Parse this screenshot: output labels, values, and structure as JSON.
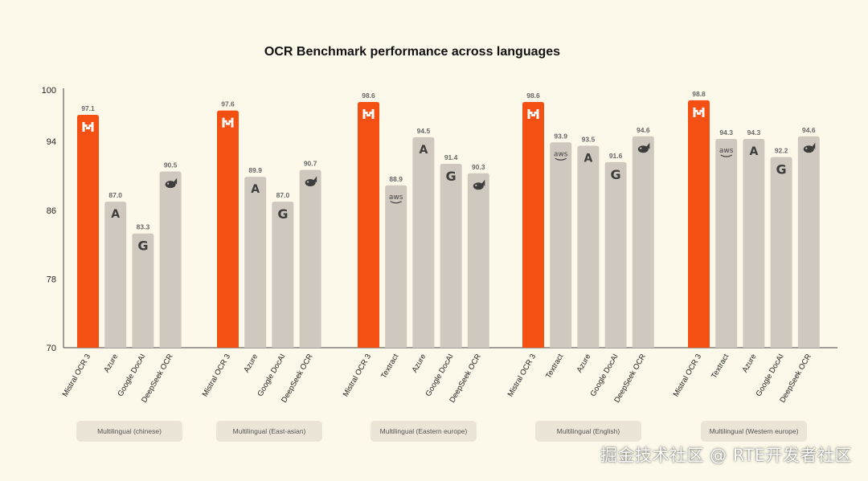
{
  "chart_data": {
    "type": "bar",
    "title": "OCR Benchmark performance across languages",
    "xlabel": "",
    "ylabel": "",
    "ylim": [
      70,
      100
    ],
    "yticks": [
      70,
      78,
      86,
      94,
      100
    ],
    "grid": false,
    "colors": {
      "highlight": "#f55014",
      "default": "#cfc8be",
      "background": "#fdf9ea"
    },
    "groups": [
      {
        "label": "Multilingual (chinese)",
        "bars": [
          {
            "name": "Mistral OCR 3",
            "value": 97.1,
            "icon": "mistral-icon"
          },
          {
            "name": "Azure",
            "value": 87.0,
            "icon": "azure-icon"
          },
          {
            "name": "Google DocAI",
            "value": 83.3,
            "icon": "google-icon"
          },
          {
            "name": "DeepSeek OCR",
            "value": 90.5,
            "icon": "deepseek-icon"
          }
        ]
      },
      {
        "label": "Multilingual (East-asian)",
        "bars": [
          {
            "name": "Mistral OCR 3",
            "value": 97.6,
            "icon": "mistral-icon"
          },
          {
            "name": "Azure",
            "value": 89.9,
            "icon": "azure-icon"
          },
          {
            "name": "Google DocAI",
            "value": 87.0,
            "icon": "google-icon"
          },
          {
            "name": "DeepSeek OCR",
            "value": 90.7,
            "icon": "deepseek-icon"
          }
        ]
      },
      {
        "label": "Multilingual (Eastern europe)",
        "bars": [
          {
            "name": "Mistral OCR 3",
            "value": 98.6,
            "icon": "mistral-icon"
          },
          {
            "name": "Textract",
            "value": 88.9,
            "icon": "aws-icon"
          },
          {
            "name": "Azure",
            "value": 94.5,
            "icon": "azure-icon"
          },
          {
            "name": "Google DocAI",
            "value": 91.4,
            "icon": "google-icon"
          },
          {
            "name": "DeepSeek OCR",
            "value": 90.3,
            "icon": "deepseek-icon"
          }
        ]
      },
      {
        "label": "Multilingual (English)",
        "bars": [
          {
            "name": "Mistral OCR 3",
            "value": 98.6,
            "icon": "mistral-icon"
          },
          {
            "name": "Textract",
            "value": 93.9,
            "icon": "aws-icon"
          },
          {
            "name": "Azure",
            "value": 93.5,
            "icon": "azure-icon"
          },
          {
            "name": "Google DocAI",
            "value": 91.6,
            "icon": "google-icon"
          },
          {
            "name": "DeepSeek OCR",
            "value": 94.6,
            "icon": "deepseek-icon"
          }
        ]
      },
      {
        "label": "Multilingual (Western europe)",
        "bars": [
          {
            "name": "Mistral OCR 3",
            "value": 98.8,
            "icon": "mistral-icon"
          },
          {
            "name": "Textract",
            "value": 94.3,
            "icon": "aws-icon"
          },
          {
            "name": "Azure",
            "value": 94.3,
            "icon": "azure-icon"
          },
          {
            "name": "Google DocAI",
            "value": 92.2,
            "icon": "google-icon"
          },
          {
            "name": "DeepSeek OCR",
            "value": 94.6,
            "icon": "deepseek-icon"
          }
        ]
      }
    ]
  },
  "watermark": "掘金技术社区 @ RTE开发者社区"
}
